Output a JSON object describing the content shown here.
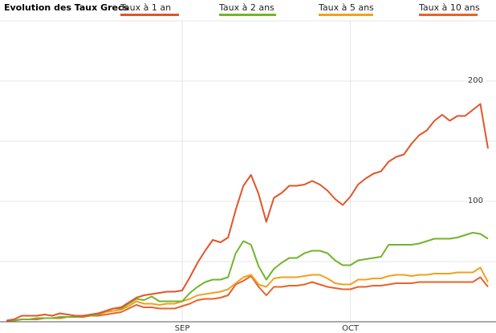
{
  "chart_data": {
    "type": "line",
    "title": "Evolution des Taux Grecs",
    "categories": [
      null,
      null,
      null,
      null,
      null,
      null,
      null,
      null,
      null,
      null,
      null,
      null,
      null,
      null,
      null,
      null,
      null,
      null,
      null,
      null,
      null,
      null,
      null,
      "SEP",
      null,
      null,
      null,
      null,
      null,
      null,
      null,
      null,
      null,
      null,
      null,
      null,
      null,
      null,
      null,
      null,
      null,
      null,
      null,
      null,
      null,
      "OCT",
      null,
      null,
      null,
      null,
      null,
      null,
      null,
      null,
      null,
      null,
      null,
      null,
      null,
      null,
      null,
      null,
      null,
      null
    ],
    "series": [
      {
        "name": "Taux à 1 an",
        "color": "#e2542a",
        "values": [
          1,
          2,
          5,
          5,
          5,
          6,
          5,
          7,
          6,
          5,
          5,
          6,
          7,
          9,
          11,
          12,
          16,
          20,
          22,
          23,
          24,
          25,
          25,
          26,
          37,
          49,
          59,
          68,
          66,
          70,
          93,
          113,
          122,
          106,
          83,
          103,
          107,
          113,
          113,
          114,
          117,
          114,
          109,
          102,
          97,
          104,
          114,
          119,
          123,
          125,
          133,
          137,
          139,
          148,
          155,
          159,
          167,
          172,
          167,
          171,
          171,
          176,
          181,
          144
        ]
      },
      {
        "name": "Taux à 2 ans",
        "color": "#72b52a",
        "values": [
          1,
          1,
          2,
          2,
          3,
          3,
          3,
          4,
          4,
          4,
          5,
          5,
          6,
          9,
          11,
          11,
          15,
          19,
          18,
          21,
          17,
          17,
          17,
          17,
          24,
          29,
          33,
          35,
          35,
          37,
          57,
          67,
          64,
          46,
          35,
          44,
          49,
          53,
          53,
          57,
          59,
          59,
          57,
          51,
          47,
          47,
          51,
          52,
          53,
          54,
          64,
          64,
          64,
          64,
          65,
          67,
          69,
          69,
          69,
          70,
          72,
          74,
          73,
          69
        ]
      },
      {
        "name": "Taux à 5 ans",
        "color": "#f1a01e",
        "values": [
          1,
          1,
          2,
          2,
          3,
          3,
          3,
          4,
          4,
          4,
          5,
          5,
          6,
          8,
          9,
          10,
          13,
          17,
          15,
          15,
          14,
          15,
          15,
          17,
          19,
          22,
          23,
          24,
          25,
          27,
          32,
          37,
          39,
          31,
          29,
          36,
          37,
          37,
          37,
          38,
          39,
          39,
          36,
          32,
          31,
          31,
          35,
          35,
          36,
          36,
          38,
          39,
          39,
          38,
          39,
          39,
          40,
          40,
          40,
          41,
          41,
          41,
          45,
          33
        ]
      },
      {
        "name": "Taux à 10 ans",
        "color": "#e8622a",
        "values": [
          1,
          1,
          2,
          2,
          2,
          3,
          3,
          3,
          4,
          4,
          4,
          5,
          5,
          6,
          7,
          8,
          11,
          14,
          12,
          12,
          11,
          11,
          11,
          13,
          15,
          18,
          19,
          19,
          20,
          22,
          31,
          34,
          38,
          29,
          22,
          29,
          29,
          30,
          30,
          31,
          33,
          31,
          29,
          28,
          27,
          27,
          29,
          29,
          30,
          30,
          31,
          32,
          32,
          32,
          33,
          33,
          33,
          33,
          33,
          33,
          33,
          33,
          37,
          29
        ]
      }
    ],
    "ylim": [
      0,
      250
    ],
    "yticks": [
      100,
      200
    ],
    "grid": true
  }
}
